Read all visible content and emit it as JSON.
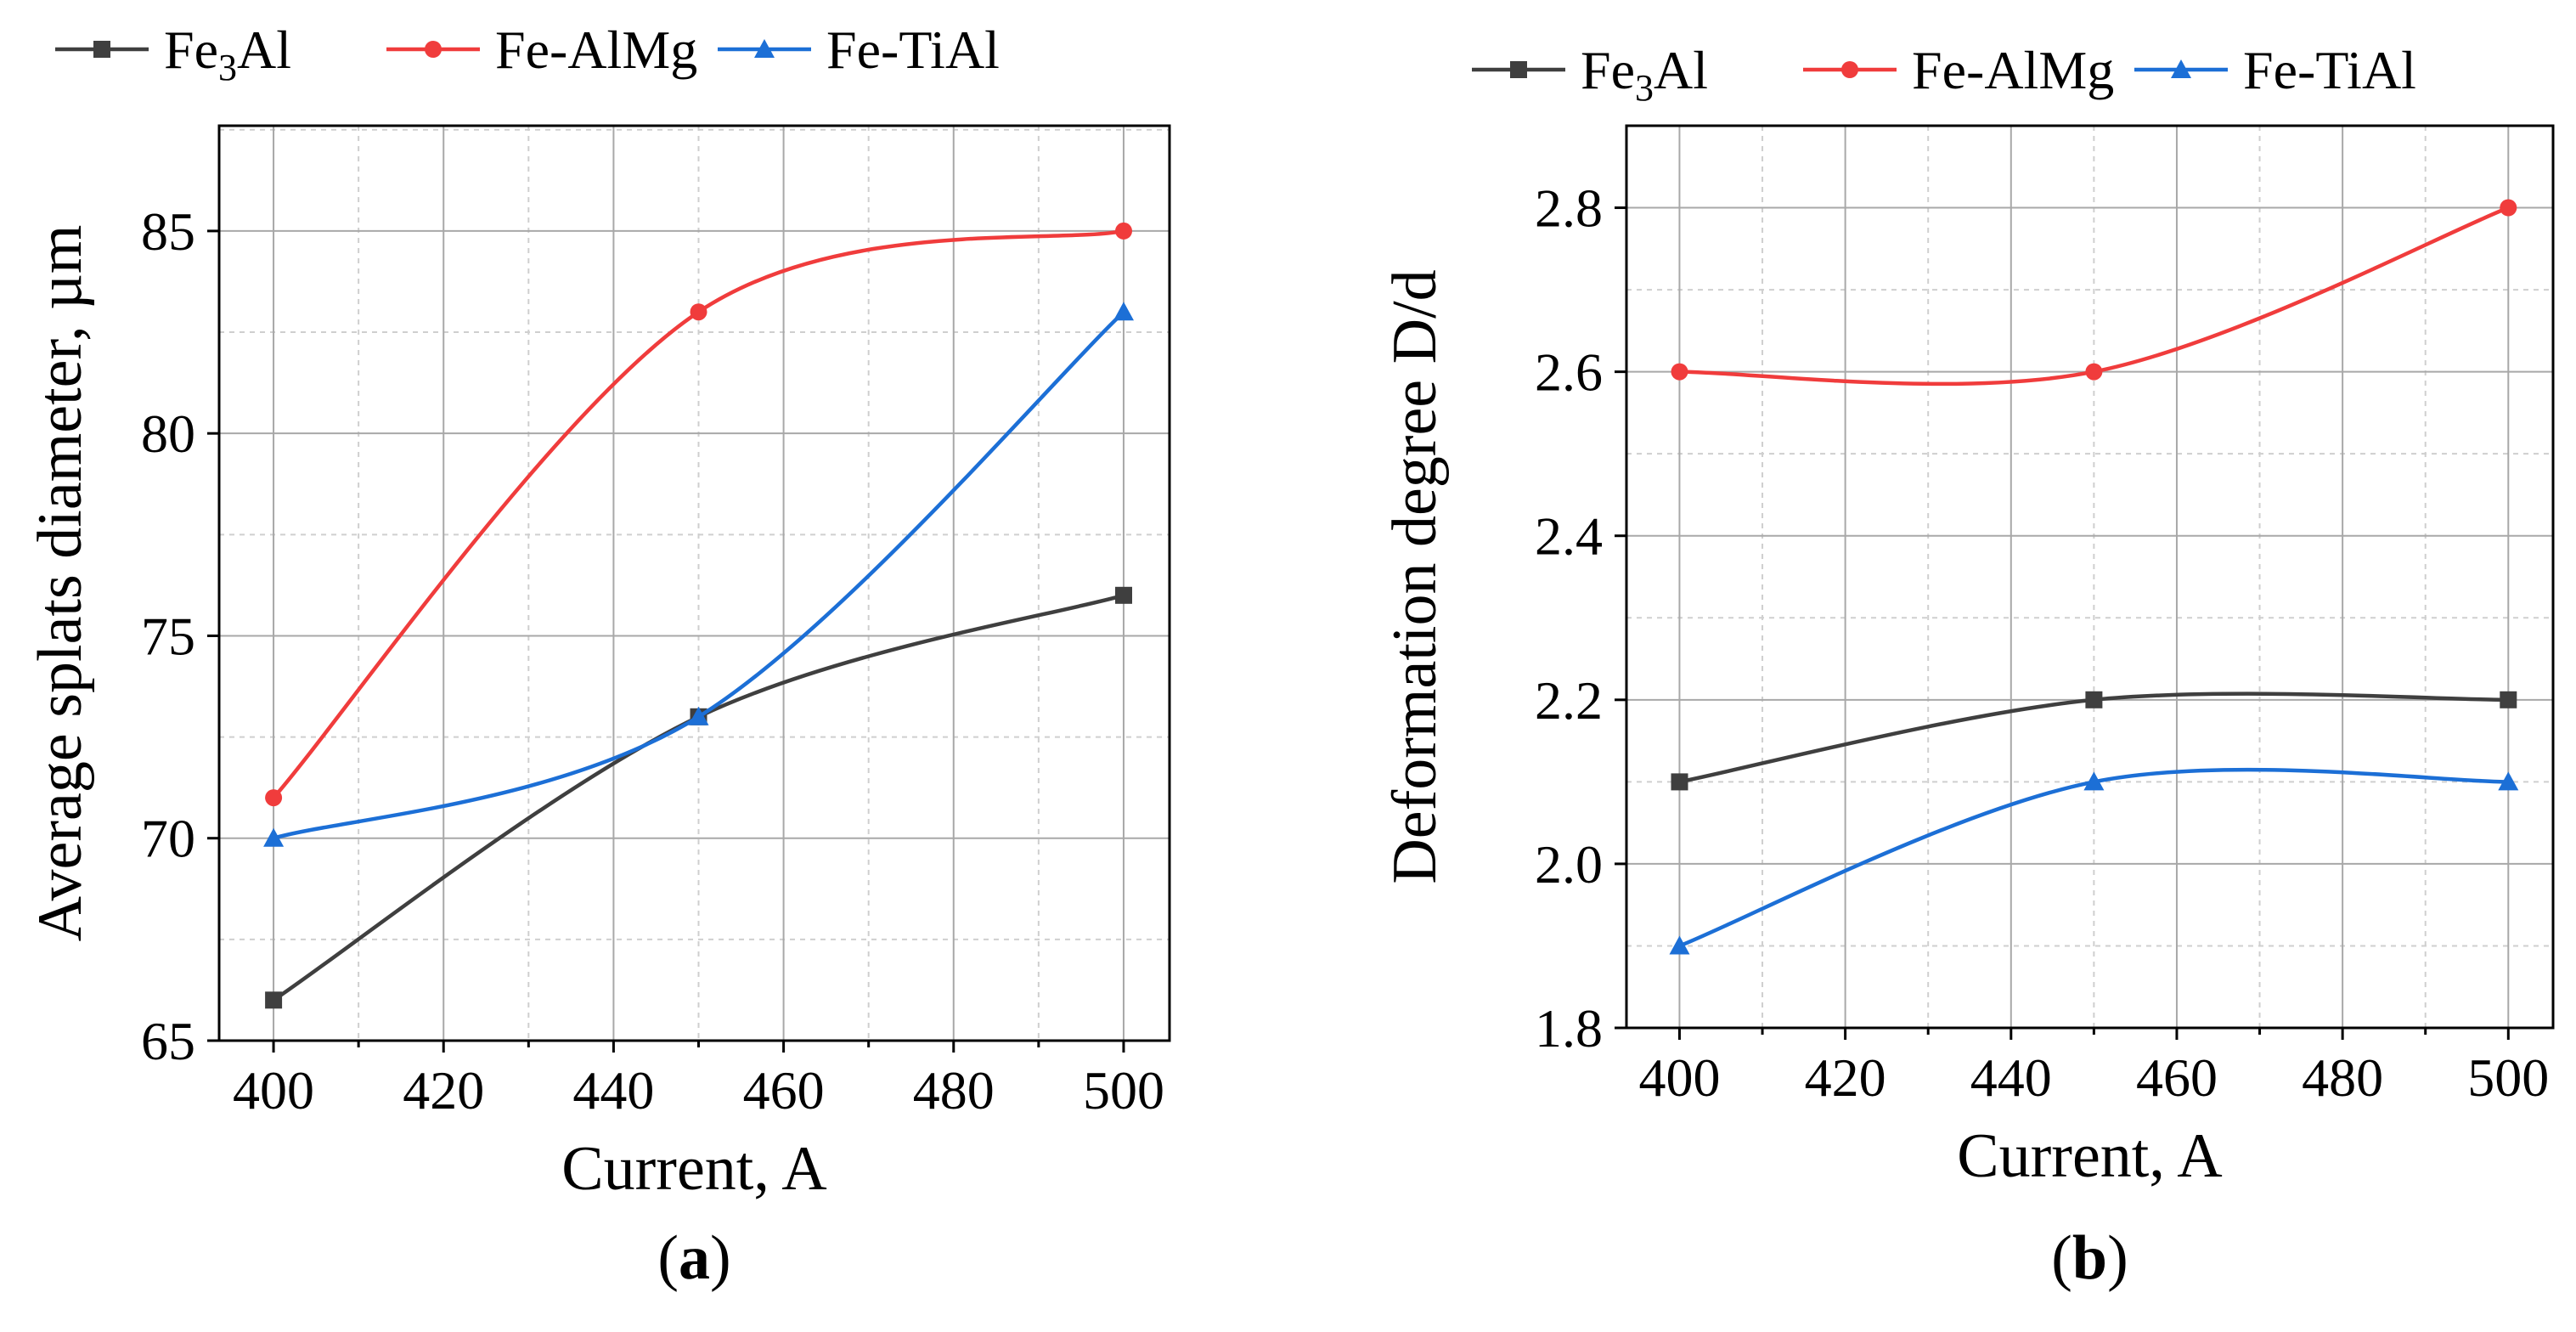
{
  "chart_data": [
    {
      "type": "line",
      "panel_label": "(a)",
      "panel_letter": "a",
      "xlabel": "Current, A",
      "ylabel": "Average splats diameter, µm",
      "xlim": [
        393.6,
        505.4
      ],
      "ylim": [
        65,
        87.6
      ],
      "xticks": [
        400,
        420,
        440,
        460,
        480,
        500
      ],
      "yticks": [
        65,
        70,
        75,
        80,
        85
      ],
      "grid": true,
      "legend_position": "top",
      "x": [
        400,
        450,
        500
      ],
      "series": [
        {
          "name": "Fe3Al",
          "name_base": "Fe",
          "name_sub": "3",
          "name_rest": "Al",
          "color": "#3f3f3f",
          "marker": "square",
          "values": [
            66,
            73,
            76
          ]
        },
        {
          "name": "Fe-AlMg",
          "name_base": "Fe-AlMg",
          "color": "#f03c3c",
          "marker": "circle",
          "values": [
            71,
            83,
            85
          ]
        },
        {
          "name": "Fe-TiAl",
          "name_base": "Fe-TiAl",
          "color": "#1c6fd6",
          "marker": "triangle",
          "values": [
            70,
            73,
            83
          ]
        }
      ]
    },
    {
      "type": "line",
      "panel_label": "(b)",
      "panel_letter": "b",
      "xlabel": "Current, A",
      "ylabel": "Deformation degree D/d",
      "xlim": [
        393.6,
        505.4
      ],
      "ylim": [
        1.8,
        2.9
      ],
      "xticks": [
        400,
        420,
        440,
        460,
        480,
        500
      ],
      "yticks": [
        1.8,
        2.0,
        2.2,
        2.4,
        2.6,
        2.8
      ],
      "grid": true,
      "legend_position": "top",
      "x": [
        400,
        450,
        500
      ],
      "series": [
        {
          "name": "Fe3Al",
          "name_base": "Fe",
          "name_sub": "3",
          "name_rest": "Al",
          "color": "#3f3f3f",
          "marker": "square",
          "values": [
            2.1,
            2.2,
            2.2
          ]
        },
        {
          "name": "Fe-AlMg",
          "name_base": "Fe-AlMg",
          "color": "#f03c3c",
          "marker": "circle",
          "values": [
            2.6,
            2.6,
            2.8
          ]
        },
        {
          "name": "Fe-TiAl",
          "name_base": "Fe-TiAl",
          "color": "#1c6fd6",
          "marker": "triangle",
          "values": [
            1.9,
            2.1,
            2.1
          ]
        }
      ]
    }
  ]
}
